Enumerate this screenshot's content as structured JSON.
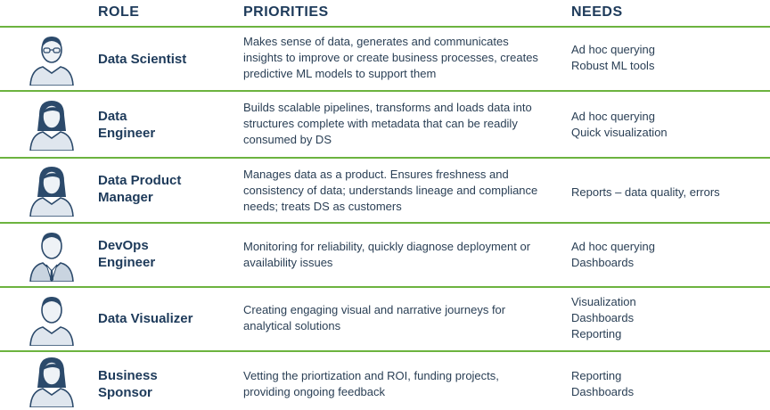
{
  "headers": {
    "role": "ROLE",
    "priorities": "PRIORITIES",
    "needs": "NEEDS"
  },
  "colors": {
    "accent_rule": "#6cb33f",
    "heading_text": "#1d3a5a",
    "avatar_fill": "#dfe6ee",
    "avatar_stroke": "#2c4a6b"
  },
  "rows": [
    {
      "role": "Data Scientist",
      "priorities": "Makes sense of data, generates and communicates insights to improve or create business processes, creates predictive ML models to support them",
      "needs": [
        "Ad hoc querying",
        "Robust ML tools"
      ],
      "icon": "male-with-glasses-user-icon"
    },
    {
      "role": "Data\nEngineer",
      "priorities": "Builds scalable pipelines, transforms and loads data into structures complete with metadata that can be readily consumed by DS",
      "needs": [
        "Ad hoc querying",
        "Quick visualization"
      ],
      "icon": "female-user-icon"
    },
    {
      "role": "Data Product\nManager",
      "priorities": "Manages data as a product. Ensures freshness and consistency of data; understands lineage and compliance needs; treats DS as customers",
      "needs": [
        "Reports – data quality, errors"
      ],
      "icon": "female-user-icon"
    },
    {
      "role": "DevOps\nEngineer",
      "priorities": "Monitoring for reliability, quickly diagnose deployment or availability issues",
      "needs": [
        "Ad hoc querying",
        "Dashboards"
      ],
      "icon": "male-suit-user-icon"
    },
    {
      "role": "Data Visualizer",
      "priorities": "Creating engaging visual and narrative journeys for analytical solutions",
      "needs": [
        "Visualization",
        "Dashboards",
        "Reporting"
      ],
      "icon": "male-user-icon"
    },
    {
      "role": "Business\nSponsor",
      "priorities": "Vetting the priortization and ROI, funding projects, providing ongoing feedback",
      "needs": [
        "Reporting",
        "Dashboards"
      ],
      "icon": "female-user-icon"
    }
  ]
}
